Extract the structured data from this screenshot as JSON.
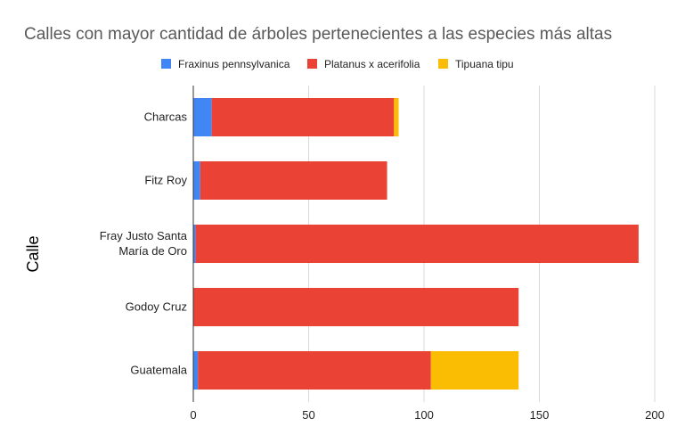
{
  "chart_data": {
    "type": "bar",
    "orientation": "horizontal",
    "stacked": true,
    "title": "Calles con mayor cantidad de árboles pertenecientes a las especies más altas",
    "xlabel": "",
    "ylabel": "Calle",
    "xlim": [
      0,
      200
    ],
    "xticks": [
      0,
      50,
      100,
      150,
      200
    ],
    "grid": true,
    "legend_position": "top",
    "categories": [
      [
        "Charcas"
      ],
      [
        "Fitz Roy"
      ],
      [
        "Fray Justo Santa",
        "María de Oro"
      ],
      [
        "Godoy Cruz"
      ],
      [
        "Guatemala"
      ]
    ],
    "series": [
      {
        "name": "Fraxinus pennsylvanica",
        "color": "#4285f4",
        "values": [
          8,
          3,
          1,
          0,
          2
        ]
      },
      {
        "name": "Platanus x acerifolia",
        "color": "#ea4335",
        "values": [
          79,
          81,
          192,
          141,
          101
        ]
      },
      {
        "name": "Tipuana tipu",
        "color": "#fbbc04",
        "values": [
          2,
          0,
          0,
          0,
          38
        ]
      }
    ]
  }
}
